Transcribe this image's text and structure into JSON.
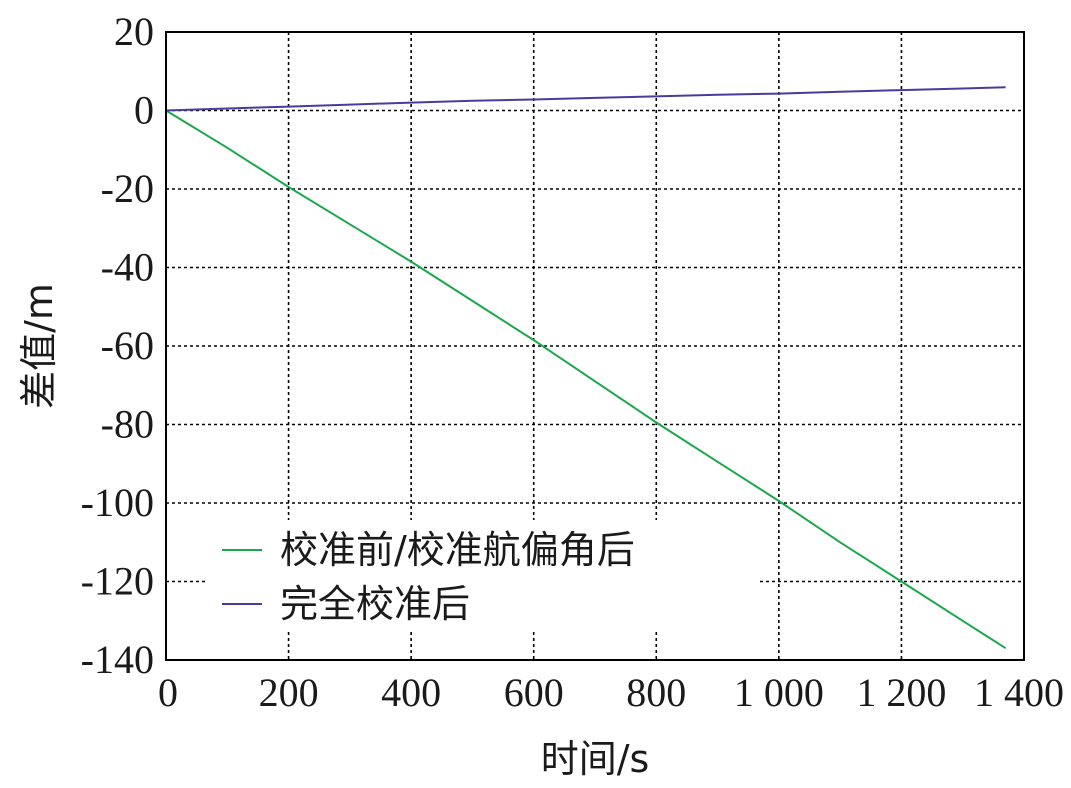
{
  "chart_data": {
    "type": "line",
    "xlabel": "时间/s",
    "ylabel": "差值/m",
    "xlim": [
      0,
      1400
    ],
    "ylim": [
      -140,
      20
    ],
    "x_ticks": [
      0,
      200,
      400,
      600,
      800,
      1000,
      1200,
      1400
    ],
    "x_tick_labels": [
      "0",
      "200",
      "400",
      "600",
      "800",
      "1 000",
      "1 200",
      "1 400"
    ],
    "y_ticks": [
      20,
      0,
      -20,
      -40,
      -60,
      -80,
      -100,
      -120,
      -140
    ],
    "y_tick_labels": [
      "20",
      "0",
      "-20",
      "-40",
      "-60",
      "-80",
      "-100",
      "-120",
      "-140"
    ],
    "grid": true,
    "legend_position": "bottom-left",
    "series": [
      {
        "name": "校准前/校准航偏角后",
        "color": "#1aa84a",
        "x": [
          0,
          100,
          200,
          300,
          400,
          500,
          600,
          700,
          800,
          900,
          1000,
          1100,
          1200,
          1300,
          1370
        ],
        "y": [
          0,
          -9.5,
          -19.5,
          -29,
          -38.5,
          -48.5,
          -58.5,
          -69,
          -79.5,
          -89.5,
          -99.5,
          -110,
          -120,
          -130,
          -137
        ]
      },
      {
        "name": "完全校准后",
        "color": "#4b3a9e",
        "x": [
          0,
          80,
          200,
          300,
          400,
          500,
          600,
          700,
          800,
          900,
          1000,
          1100,
          1200,
          1300,
          1370
        ],
        "y": [
          0,
          0.4,
          1,
          1.5,
          2,
          2.5,
          2.8,
          3.2,
          3.6,
          4,
          4.3,
          4.8,
          5.2,
          5.6,
          5.9
        ]
      }
    ]
  }
}
